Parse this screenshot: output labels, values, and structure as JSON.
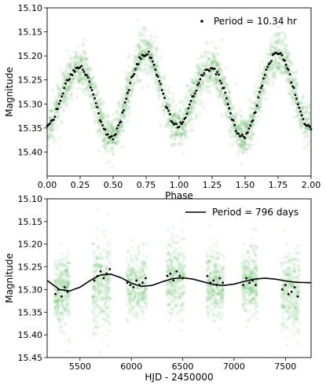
{
  "chart_data": [
    {
      "type": "scatter",
      "title": "",
      "xlabel": "Phase",
      "ylabel": "Magnitude",
      "xlim": [
        0.0,
        2.0
      ],
      "ylim": [
        15.45,
        15.1
      ],
      "y_inverted": true,
      "xticks": [
        "0.00",
        "0.25",
        "0.50",
        "0.75",
        "1.00",
        "1.25",
        "1.50",
        "1.75",
        "2.00"
      ],
      "xtick_values": [
        0.0,
        0.25,
        0.5,
        0.75,
        1.0,
        1.25,
        1.5,
        1.75,
        2.0
      ],
      "yticks": [
        "15.10",
        "15.15",
        "15.20",
        "15.25",
        "15.30",
        "15.35",
        "15.40"
      ],
      "ytick_values": [
        15.1,
        15.15,
        15.2,
        15.25,
        15.3,
        15.35,
        15.4
      ],
      "legend": {
        "label": "Period = 10.34 hr",
        "placement": "top-right",
        "marker": "dot"
      },
      "colors": {
        "raw": "#2ca02c",
        "binned": "#000000"
      },
      "series": [
        {
          "kind": "binned-curve",
          "x": [
            0.0,
            0.05,
            0.1,
            0.15,
            0.2,
            0.25,
            0.3,
            0.35,
            0.4,
            0.45,
            0.5,
            0.55,
            0.6,
            0.65,
            0.7,
            0.75,
            0.8,
            0.85,
            0.9,
            0.95,
            1.0,
            1.05,
            1.1,
            1.15,
            1.2,
            1.25,
            1.3,
            1.35,
            1.4,
            1.45,
            1.5,
            1.55,
            1.6,
            1.65,
            1.7,
            1.75,
            1.8,
            1.85,
            1.9,
            1.95,
            2.0
          ],
          "y": [
            15.35,
            15.33,
            15.29,
            15.255,
            15.23,
            15.225,
            15.24,
            15.28,
            15.33,
            15.365,
            15.37,
            15.34,
            15.29,
            15.24,
            15.205,
            15.193,
            15.21,
            15.25,
            15.3,
            15.34,
            15.35,
            15.33,
            15.29,
            15.255,
            15.23,
            15.225,
            15.24,
            15.28,
            15.33,
            15.365,
            15.37,
            15.34,
            15.29,
            15.24,
            15.205,
            15.193,
            15.21,
            15.25,
            15.3,
            15.34,
            15.35
          ],
          "scatter_spread": 0.035
        }
      ]
    },
    {
      "type": "scatter",
      "title": "",
      "xlabel": "HJD - 2450000",
      "ylabel": "Magnitude",
      "xlim": [
        5180,
        7750
      ],
      "ylim": [
        15.45,
        15.1
      ],
      "y_inverted": true,
      "xticks": [
        "5500",
        "6000",
        "6500",
        "7000",
        "7500"
      ],
      "xtick_values": [
        5500,
        6000,
        6500,
        7000,
        7500
      ],
      "yticks": [
        "15.10",
        "15.15",
        "15.20",
        "15.25",
        "15.30",
        "15.35",
        "15.40",
        "15.45"
      ],
      "ytick_values": [
        15.1,
        15.15,
        15.2,
        15.25,
        15.3,
        15.35,
        15.4,
        15.45
      ],
      "legend": {
        "label": "Period = 796 days",
        "placement": "top-right",
        "marker": "line"
      },
      "colors": {
        "raw": "#2ca02c",
        "binned": "#000000",
        "fit": "#000000"
      },
      "seasons": [
        {
          "start": 5250,
          "end": 5400,
          "center": 15.305,
          "spread": 0.09
        },
        {
          "start": 5620,
          "end": 5800,
          "center": 15.285,
          "spread": 0.11
        },
        {
          "start": 5950,
          "end": 6150,
          "center": 15.29,
          "spread": 0.08
        },
        {
          "start": 6340,
          "end": 6520,
          "center": 15.27,
          "spread": 0.09
        },
        {
          "start": 6730,
          "end": 6900,
          "center": 15.285,
          "spread": 0.08
        },
        {
          "start": 7080,
          "end": 7230,
          "center": 15.285,
          "spread": 0.08
        },
        {
          "start": 7460,
          "end": 7640,
          "center": 15.3,
          "spread": 0.1
        }
      ],
      "binned": {
        "x": [
          5260,
          5290,
          5320,
          5350,
          5380,
          5640,
          5670,
          5700,
          5730,
          5760,
          5790,
          5960,
          5990,
          6020,
          6050,
          6080,
          6110,
          6140,
          6350,
          6380,
          6410,
          6440,
          6470,
          6500,
          6740,
          6770,
          6800,
          6830,
          6860,
          6890,
          7090,
          7120,
          7150,
          7180,
          7210,
          7470,
          7500,
          7530,
          7560,
          7590,
          7620
        ],
        "y": [
          15.31,
          15.3,
          15.315,
          15.295,
          15.305,
          15.28,
          15.27,
          15.26,
          15.275,
          15.265,
          15.255,
          15.285,
          15.29,
          15.295,
          15.28,
          15.29,
          15.285,
          15.275,
          15.27,
          15.265,
          15.28,
          15.26,
          15.27,
          15.275,
          15.27,
          15.285,
          15.28,
          15.29,
          15.275,
          15.285,
          15.29,
          15.275,
          15.285,
          15.28,
          15.29,
          15.3,
          15.29,
          15.31,
          15.305,
          15.295,
          15.315
        ]
      },
      "fit": {
        "x": [
          5180,
          5300,
          5400,
          5500,
          5600,
          5700,
          5800,
          5900,
          6000,
          6100,
          6200,
          6300,
          6400,
          6500,
          6600,
          6700,
          6800,
          6900,
          7000,
          7100,
          7200,
          7300,
          7400,
          7500,
          7600,
          7750
        ],
        "y": [
          15.28,
          15.3,
          15.303,
          15.295,
          15.28,
          15.268,
          15.266,
          15.274,
          15.286,
          15.293,
          15.291,
          15.283,
          15.276,
          15.274,
          15.277,
          15.283,
          15.289,
          15.291,
          15.288,
          15.282,
          15.277,
          15.275,
          15.277,
          15.281,
          15.284,
          15.285
        ]
      }
    }
  ]
}
